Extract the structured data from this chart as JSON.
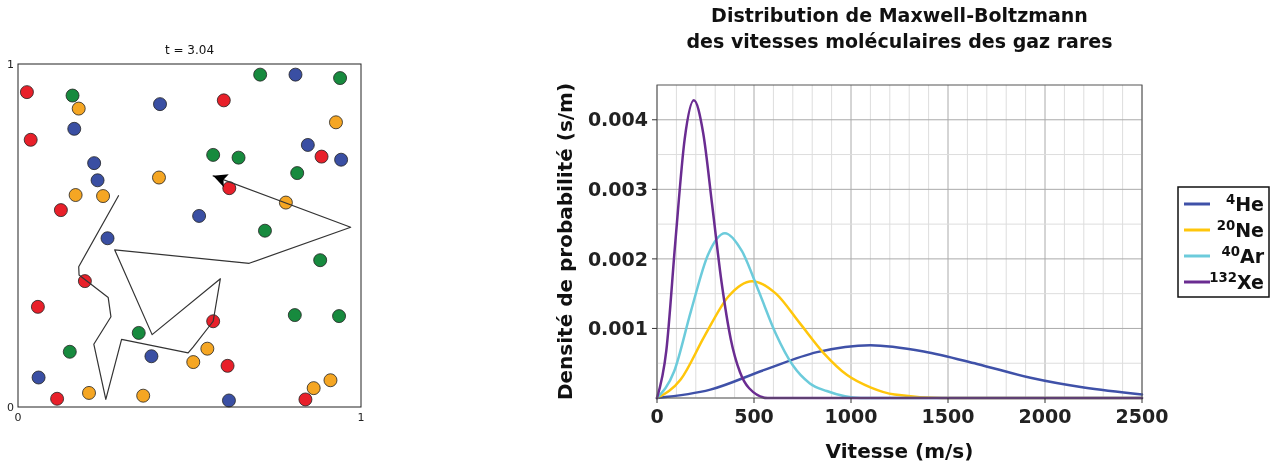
{
  "chart_data": [
    {
      "type": "scatter",
      "title": "t = 3.04",
      "xlim": [
        0,
        1
      ],
      "ylim": [
        0,
        1
      ],
      "xticks": [
        0,
        1
      ],
      "yticks": [
        0,
        1
      ],
      "marker": "circle",
      "series": [
        {
          "color": "#e8202a",
          "x": [
            0.026,
            0.037,
            0.6,
            0.885,
            0.616,
            0.125,
            0.195,
            0.058,
            0.569,
            0.611,
            0.114,
            0.838
          ],
          "values": [
            0.918,
            0.779,
            0.894,
            0.73,
            0.638,
            0.574,
            0.367,
            0.292,
            0.25,
            0.12,
            0.024,
            0.022
          ]
        },
        {
          "color": "#178a3e",
          "x": [
            0.159,
            0.706,
            0.939,
            0.569,
            0.643,
            0.814,
            0.72,
            0.881,
            0.807,
            0.936,
            0.352,
            0.151
          ],
          "values": [
            0.908,
            0.969,
            0.959,
            0.735,
            0.727,
            0.682,
            0.514,
            0.428,
            0.268,
            0.265,
            0.216,
            0.161
          ]
        },
        {
          "color": "#3a4fa3",
          "x": [
            0.414,
            0.809,
            0.164,
            0.845,
            0.942,
            0.222,
            0.232,
            0.528,
            0.261,
            0.389,
            0.06,
            0.615
          ],
          "values": [
            0.883,
            0.969,
            0.811,
            0.764,
            0.721,
            0.711,
            0.661,
            0.557,
            0.492,
            0.148,
            0.086,
            0.019
          ]
        },
        {
          "color": "#f5a623",
          "x": [
            0.177,
            0.927,
            0.411,
            0.168,
            0.248,
            0.781,
            0.552,
            0.511,
            0.207,
            0.365,
            0.862,
            0.911
          ],
          "values": [
            0.87,
            0.83,
            0.669,
            0.618,
            0.615,
            0.596,
            0.17,
            0.131,
            0.041,
            0.033,
            0.055,
            0.078
          ]
        },
        {
          "type": "line",
          "marker": "none",
          "color": "#333333",
          "x": [
            0.293,
            0.177,
            0.178,
            0.263,
            0.271,
            0.221,
            0.256,
            0.302,
            0.496,
            0.511,
            0.569,
            0.59,
            0.391,
            0.282,
            0.674,
            0.97,
            0.569
          ],
          "values": [
            0.616,
            0.409,
            0.385,
            0.319,
            0.263,
            0.183,
            0.022,
            0.197,
            0.158,
            0.175,
            0.25,
            0.374,
            0.211,
            0.458,
            0.419,
            0.524,
            0.674
          ]
        }
      ]
    },
    {
      "type": "line",
      "title": "Distribution de Maxwell-Boltzmann\ndes vitesses moléculaires des gaz rares",
      "xlabel": "Vitesse (m/s)",
      "ylabel": "Densité de probabilité (s/m)",
      "xlim": [
        0,
        2500
      ],
      "ylim": [
        0,
        0.0045
      ],
      "grid": true,
      "legend": "right",
      "marker": "none",
      "xticks": [
        0,
        {
          "value": 100,
          "label": null
        },
        {
          "value": 200,
          "label": null
        },
        {
          "value": 300,
          "label": null
        },
        {
          "value": 400,
          "label": null
        },
        500,
        {
          "value": 600,
          "label": null
        },
        {
          "value": 700,
          "label": null
        },
        {
          "value": 800,
          "label": null
        },
        {
          "value": 900,
          "label": null
        },
        1000,
        {
          "value": 1100,
          "label": null
        },
        {
          "value": 1200,
          "label": null
        },
        {
          "value": 1300,
          "label": null
        },
        {
          "value": 1400,
          "label": null
        },
        1500,
        {
          "value": 1600,
          "label": null
        },
        {
          "value": 1700,
          "label": null
        },
        {
          "value": 1800,
          "label": null
        },
        {
          "value": 1900,
          "label": null
        },
        2000,
        {
          "value": 2100,
          "label": null
        },
        {
          "value": 2200,
          "label": null
        },
        {
          "value": 2300,
          "label": null
        },
        {
          "value": 2400,
          "label": null
        },
        2500
      ],
      "yticks": [
        {
          "value": 0,
          "label": null
        },
        {
          "value": 0.0005,
          "label": null
        },
        0.001,
        {
          "value": 0.0015,
          "label": null
        },
        0.002,
        {
          "value": 0.0025,
          "label": null
        },
        0.003,
        {
          "value": 0.0035,
          "label": null
        },
        0.004
      ],
      "series": [
        {
          "name": "$^{4}$He",
          "color": "#3f51a8",
          "x": [
            0,
            275,
            550,
            825,
            1100,
            1375,
            1650,
            1925,
            2200,
            2500
          ],
          "values": [
            0,
            0.00012,
            0.0004,
            0.00066,
            0.00076,
            0.00067,
            0.00049,
            0.00029,
            0.00015,
            5e-05
          ]
        },
        {
          "name": "$^{20}$Ne",
          "color": "#ffc60b",
          "x": [
            0,
            123,
            245,
            368,
            490,
            613,
            735,
            858,
            980,
            1103,
            1225,
            1470,
            2500
          ],
          "values": [
            0,
            0.00027,
            0.00089,
            0.00146,
            0.00168,
            0.0015,
            0.00108,
            0.00065,
            0.00033,
            0.00015,
            5e-05,
            0,
            0
          ]
        },
        {
          "name": "$^{40}$Ar",
          "color": "#6ccbdb",
          "x": [
            0,
            88,
            175,
            263,
            350,
            438,
            525,
            613,
            700,
            788,
            875,
            1050,
            2500
          ],
          "values": [
            0,
            0.00038,
            0.00125,
            0.00206,
            0.00237,
            0.00211,
            0.00153,
            0.00092,
            0.00047,
            0.00021,
            0.0001,
            0,
            0
          ]
        },
        {
          "name": "$^{132}$Xe",
          "color": "#6a2c91",
          "x": [
            0,
            48,
            95,
            143,
            190,
            238,
            285,
            333,
            380,
            428,
            475,
            570,
            2500
          ],
          "values": [
            0,
            0.00068,
            0.00226,
            0.00373,
            0.00428,
            0.00381,
            0.00276,
            0.00166,
            0.00085,
            0.00037,
            0.00014,
            0,
            0
          ]
        }
      ]
    }
  ]
}
